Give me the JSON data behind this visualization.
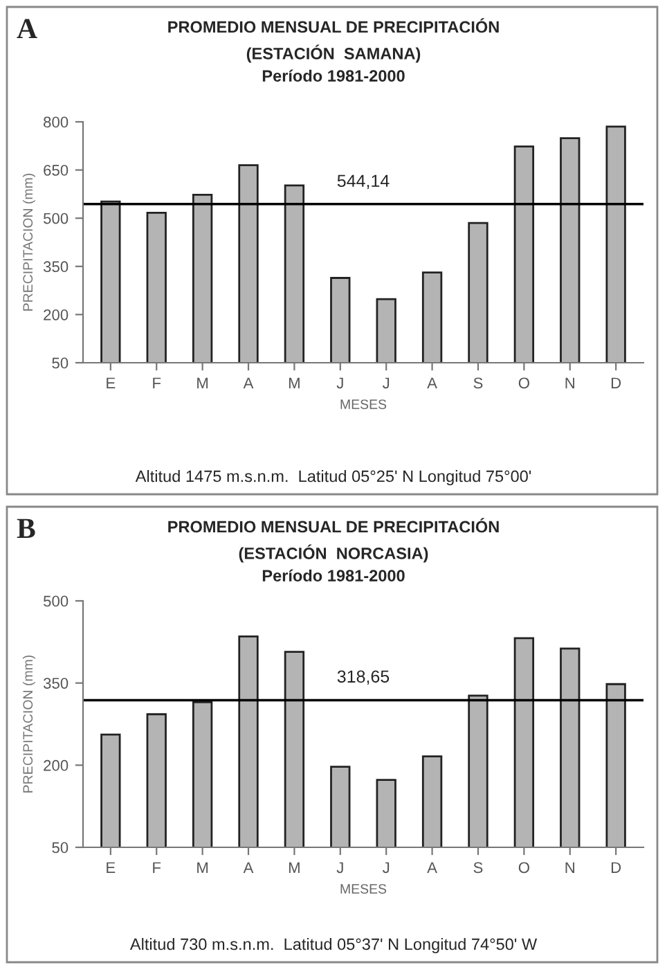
{
  "chart_data": [
    {
      "type": "bar",
      "title": "PROMEDIO MENSUAL DE PRECIPITACIÓN",
      "subtitle": "(ESTACIÓN  SAMANA)\nPeríodo 1981-2000",
      "xlabel": "MESES",
      "ylabel": "PRECIPITACION (mm)",
      "categories": [
        "E",
        "F",
        "M",
        "A",
        "M",
        "J",
        "J",
        "A",
        "S",
        "O",
        "N",
        "D"
      ],
      "values": [
        552,
        517,
        573,
        665,
        602,
        314,
        248,
        331,
        485,
        723,
        749,
        785
      ],
      "color": "#b4b4b4",
      "ylim": [
        50,
        800
      ],
      "yticks": [
        50,
        200,
        350,
        500,
        650,
        800
      ],
      "grid": false,
      "ref_lines": [
        {
          "axis": "y",
          "value": 544.14,
          "label": "544,14",
          "color": "#000000"
        }
      ],
      "annotations": [
        "A",
        "Altitud 1475 m.s.n.m.  Latitud 05°25' N Longitud 75°00'"
      ]
    },
    {
      "type": "bar",
      "title": "PROMEDIO MENSUAL DE PRECIPITACIÓN",
      "subtitle": "(ESTACIÓN  NORCASIA)\nPeríodo 1981-2000",
      "xlabel": "MESES",
      "ylabel": "PRECIPITACION (mm)",
      "categories": [
        "E",
        "F",
        "M",
        "A",
        "M",
        "J",
        "J",
        "A",
        "S",
        "O",
        "N",
        "D"
      ],
      "values": [
        256,
        293,
        315,
        435,
        407,
        197,
        173,
        216,
        327,
        432,
        413,
        348
      ],
      "color": "#b4b4b4",
      "ylim": [
        50,
        500
      ],
      "yticks": [
        50,
        200,
        350,
        500
      ],
      "grid": false,
      "ref_lines": [
        {
          "axis": "y",
          "value": 318.65,
          "label": "318,65",
          "color": "#000000"
        }
      ],
      "annotations": [
        "B",
        "Altitud 730 m.s.n.m.  Latitud 05°37' N Longitud 74°50' W"
      ]
    }
  ]
}
